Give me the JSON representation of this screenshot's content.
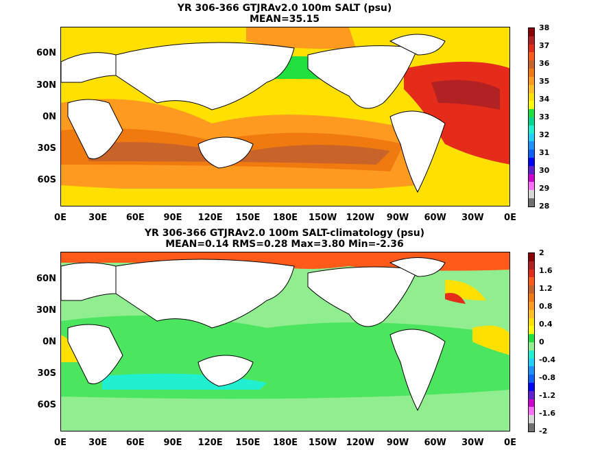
{
  "panel_top": {
    "title_line1": "YR 306-366 GTJRAv2.0 100m SALT (psu)",
    "title_line2": "MEAN=35.15",
    "colorbar_labels": [
      "38",
      "37",
      "36",
      "35",
      "34",
      "33",
      "32",
      "31",
      "30",
      "29",
      "28"
    ],
    "colorbar_colors": [
      "#8b0000",
      "#b22222",
      "#e52b1a",
      "#ff5a1a",
      "#c8642a",
      "#f07a10",
      "#ff9a20",
      "#ffc020",
      "#ffe000",
      "#ffff00",
      "#20e040",
      "#00d890",
      "#20f0d0",
      "#20d0ff",
      "#1e90ff",
      "#1060ff",
      "#0000ff",
      "#6020d0",
      "#d000d0",
      "#ff70ff",
      "#d8d8d8",
      "#707070"
    ]
  },
  "panel_bottom": {
    "title_line1": "YR 306-366 GTJRAv2.0 100m SALT-climatology (psu)",
    "title_line2": "MEAN=0.14   RMS=0.28   Max=3.80   Min=-2.36",
    "colorbar_labels": [
      "2",
      "1.6",
      "1.2",
      "0.8",
      "0.4",
      "0",
      "-0.4",
      "-0.8",
      "-1.2",
      "-1.6",
      "-2"
    ],
    "colorbar_colors": [
      "#8b0000",
      "#b22222",
      "#e52b1a",
      "#ff5a1a",
      "#c8642a",
      "#f07a10",
      "#ff9a20",
      "#ffc020",
      "#ffe000",
      "#ffff00",
      "#20e040",
      "#90ee90",
      "#20f0d0",
      "#20d0ff",
      "#1e90ff",
      "#1060ff",
      "#0000ff",
      "#6020d0",
      "#d000d0",
      "#ff70ff",
      "#d8d8d8",
      "#707070"
    ]
  },
  "axes": {
    "y_labels": [
      "60N",
      "30N",
      "0N",
      "30S",
      "60S"
    ],
    "x_labels": [
      "0E",
      "30E",
      "60E",
      "90E",
      "120E",
      "150E",
      "180E",
      "150W",
      "120W",
      "90W",
      "60W",
      "30W",
      "0E"
    ]
  }
}
